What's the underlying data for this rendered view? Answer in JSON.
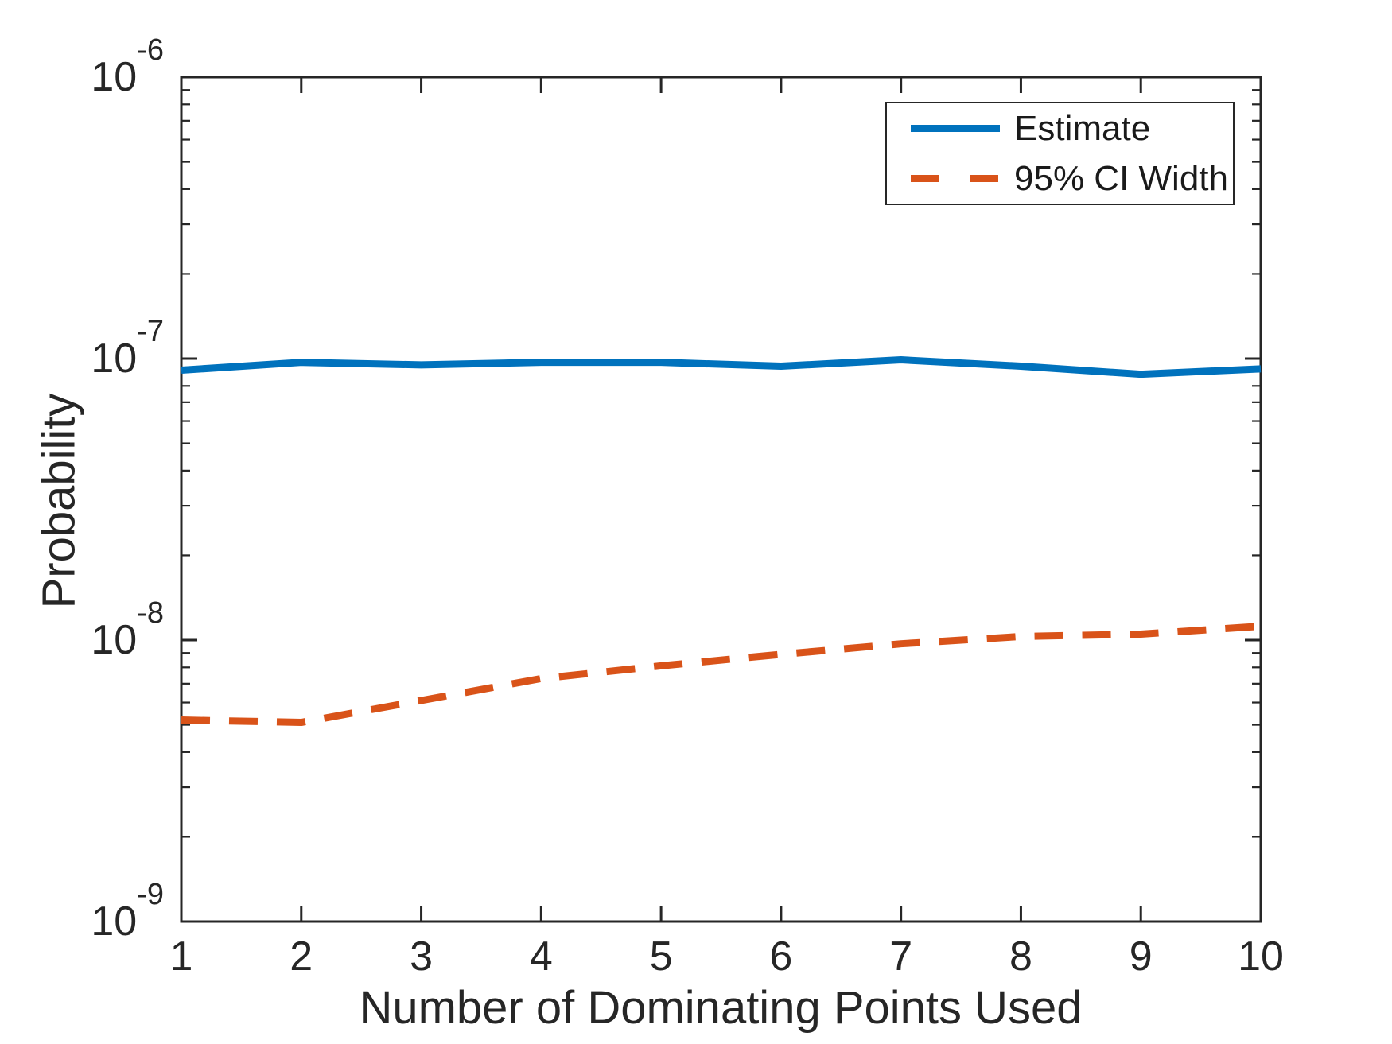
{
  "figure": {
    "background": "#ffffff",
    "axis_color": "#262626",
    "text_color": "#262626"
  },
  "chart_data": {
    "type": "line",
    "title": "",
    "xlabel": "Number of Dominating Points Used",
    "ylabel": "Probability",
    "x_scale": "linear",
    "y_scale": "log",
    "xlim": [
      1,
      10
    ],
    "ylim": [
      1e-09,
      1e-06
    ],
    "grid": false,
    "x": [
      1,
      2,
      3,
      4,
      5,
      6,
      7,
      8,
      9,
      10
    ],
    "x_tick_labels": [
      "1",
      "2",
      "3",
      "4",
      "5",
      "6",
      "7",
      "8",
      "9",
      "10"
    ],
    "y_ticks": [
      {
        "base": "10",
        "exp": "-6",
        "value": 1e-06
      },
      {
        "base": "10",
        "exp": "-7",
        "value": 1e-07
      },
      {
        "base": "10",
        "exp": "-8",
        "value": 1e-08
      },
      {
        "base": "10",
        "exp": "-9",
        "value": 1e-09
      }
    ],
    "series": [
      {
        "name": "Estimate",
        "color": "#0072BD",
        "style": "solid",
        "values": [
          9.1e-08,
          9.7e-08,
          9.5e-08,
          9.7e-08,
          9.7e-08,
          9.4e-08,
          9.9e-08,
          9.4e-08,
          8.8e-08,
          9.2e-08
        ]
      },
      {
        "name": "95% CI Width",
        "color": "#D95319",
        "style": "dashed",
        "values": [
          5.2e-09,
          5.1e-09,
          6.1e-09,
          7.3e-09,
          8.1e-09,
          8.9e-09,
          9.7e-09,
          1.03e-08,
          1.05e-08,
          1.12e-08
        ]
      }
    ],
    "legend": {
      "position": "top-right",
      "entries": [
        "Estimate",
        "95% CI Width"
      ]
    }
  }
}
